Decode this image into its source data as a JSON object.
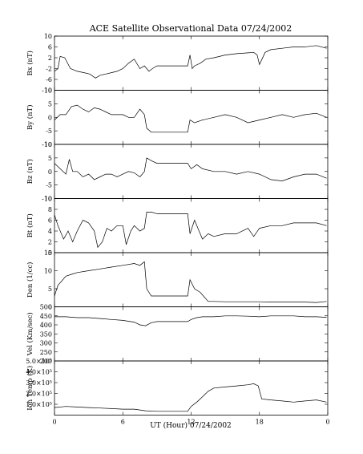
{
  "title": "ACE Satellite Observational Data   07/24/2002",
  "xlabel": "UT (Hour)   07/24/2002",
  "chart_data": [
    {
      "type": "line",
      "ylabel": "Bx (nT)",
      "ylim": [
        -10,
        10
      ],
      "yticks": [
        "-10",
        "-6",
        "-2",
        "2",
        "6",
        "10"
      ],
      "ytick_values": [
        -10,
        -6,
        -2,
        2,
        6,
        10
      ],
      "x": [
        0,
        0.3,
        0.5,
        0.9,
        1.4,
        2.0,
        2.6,
        3.1,
        3.6,
        4.0,
        4.5,
        5.0,
        5.5,
        6.0,
        6.5,
        7.0,
        7.5,
        7.9,
        8.3,
        8.6,
        9.0,
        10.0,
        11.0,
        11.7,
        11.9,
        12.1,
        12.3,
        12.8,
        13.3,
        14.0,
        15.0,
        16.0,
        17.0,
        17.5,
        17.8,
        18.0,
        18.5,
        19.0,
        20.0,
        21.0,
        22.0,
        23.0,
        23.9
      ],
      "values": [
        -3,
        -2,
        2.5,
        2,
        -2,
        -3,
        -3.5,
        -4,
        -5.5,
        -4.5,
        -4,
        -3.5,
        -3,
        -2,
        0,
        1.5,
        -2,
        -1,
        -3,
        -2,
        -1,
        -1,
        -1,
        -1,
        3,
        -2,
        -1,
        0,
        1.5,
        2,
        3,
        3.5,
        3.8,
        4,
        3,
        -0.5,
        4,
        5,
        5.5,
        6,
        6,
        6.5,
        5.5
      ],
      "xlim": [
        0,
        24
      ],
      "xticks": [
        "0",
        "6",
        "12",
        "18",
        "0"
      ],
      "xtick_values": [
        0,
        6,
        12,
        18,
        24
      ]
    },
    {
      "type": "line",
      "ylabel": "By (nT)",
      "ylim": [
        -10,
        10
      ],
      "yticks": [
        "-10",
        "-5",
        "0",
        "5",
        "10"
      ],
      "ytick_values": [
        -10,
        -5,
        0,
        5,
        10
      ],
      "x": [
        0,
        0.5,
        1.0,
        1.5,
        2.0,
        2.5,
        3.0,
        3.5,
        4.0,
        4.5,
        5.0,
        5.5,
        6.0,
        6.5,
        7.0,
        7.5,
        7.9,
        8.1,
        8.5,
        9.0,
        10.0,
        11.0,
        11.7,
        11.9,
        12.3,
        13.0,
        14.0,
        15.0,
        16.0,
        17.0,
        18.0,
        19.0,
        20.0,
        21.0,
        22.0,
        23.0,
        23.9
      ],
      "values": [
        -1,
        1,
        1,
        4,
        4.5,
        3,
        2,
        3.5,
        3,
        2,
        1,
        1,
        1,
        0,
        0,
        3,
        1,
        -4,
        -5.5,
        -5.5,
        -5.5,
        -5.5,
        -5.5,
        -1,
        -2,
        -1,
        0,
        1,
        0,
        -2,
        -1,
        0,
        1,
        0,
        1,
        1.5,
        0
      ],
      "xlim": [
        0,
        24
      ],
      "xticks": [
        "0",
        "6",
        "12",
        "18",
        "0"
      ],
      "xtick_values": [
        0,
        6,
        12,
        18,
        24
      ]
    },
    {
      "type": "line",
      "ylabel": "Bz (nT)",
      "ylim": [
        -10,
        10
      ],
      "yticks": [
        "-10",
        "-5",
        "0",
        "5",
        "10"
      ],
      "ytick_values": [
        -10,
        -5,
        0,
        5,
        10
      ],
      "x": [
        0,
        0.5,
        1.0,
        1.3,
        1.6,
        2.0,
        2.5,
        3.0,
        3.5,
        4.0,
        4.5,
        5.0,
        5.5,
        6.0,
        6.5,
        7.0,
        7.5,
        7.9,
        8.1,
        8.5,
        9.0,
        10.0,
        11.0,
        11.7,
        12.0,
        12.5,
        13.0,
        14.0,
        15.0,
        16.0,
        17.0,
        18.0,
        19.0,
        20.0,
        21.0,
        22.0,
        23.0,
        23.9
      ],
      "values": [
        3,
        1,
        -1,
        4.5,
        0,
        0,
        -2,
        -1,
        -3,
        -2,
        -1,
        -1,
        -2,
        -1,
        0,
        -0.5,
        -2,
        0,
        5,
        4,
        3,
        3,
        3,
        3,
        1,
        2.5,
        1,
        0,
        0,
        -1,
        0,
        -1,
        -3,
        -3.5,
        -2,
        -1,
        -1,
        -2.5
      ],
      "xlim": [
        0,
        24
      ],
      "xticks": [
        "0",
        "6",
        "12",
        "18",
        "0"
      ],
      "xtick_values": [
        0,
        6,
        12,
        18,
        24
      ]
    },
    {
      "type": "line",
      "ylabel": "Bt (nT)",
      "ylim": [
        0,
        10
      ],
      "yticks": [
        "0",
        "2",
        "4",
        "6",
        "8",
        "10"
      ],
      "ytick_values": [
        0,
        2,
        4,
        6,
        8,
        10
      ],
      "x": [
        0,
        0.3,
        0.8,
        1.2,
        1.6,
        2.0,
        2.5,
        3.0,
        3.5,
        3.8,
        4.2,
        4.6,
        5.0,
        5.5,
        6.0,
        6.3,
        6.7,
        7.0,
        7.5,
        7.9,
        8.1,
        8.5,
        9.0,
        10.0,
        11.0,
        11.7,
        11.9,
        12.3,
        12.7,
        13.0,
        13.5,
        14.0,
        15.0,
        16.0,
        17.0,
        17.5,
        18.0,
        19.0,
        20.0,
        21.0,
        22.0,
        23.0,
        23.9
      ],
      "values": [
        7,
        5,
        2.5,
        4,
        2,
        4,
        6,
        5.5,
        4,
        1,
        2,
        4.5,
        4,
        5,
        5,
        1.5,
        4,
        5,
        4,
        4.5,
        7.5,
        7.5,
        7.2,
        7.2,
        7.2,
        7.2,
        3.5,
        6,
        4,
        2.5,
        3.5,
        3,
        3.5,
        3.5,
        4.5,
        3,
        4.5,
        5,
        5,
        5.5,
        5.5,
        5.5,
        5
      ],
      "xlim": [
        0,
        24
      ],
      "xticks": [
        "0",
        "6",
        "12",
        "18",
        "0"
      ],
      "xtick_values": [
        0,
        6,
        12,
        18,
        24
      ]
    },
    {
      "type": "line",
      "ylabel": "Den (1/cc)",
      "ylim": [
        0,
        15
      ],
      "yticks": [
        "0",
        "5",
        "10",
        "15"
      ],
      "ytick_values": [
        0,
        5,
        10,
        15
      ],
      "x": [
        0,
        0.3,
        0.6,
        1.0,
        1.5,
        2.0,
        3.0,
        4.0,
        5.0,
        6.0,
        7.0,
        7.5,
        7.9,
        8.1,
        8.5,
        9.0,
        10.0,
        11.0,
        11.7,
        11.9,
        12.3,
        12.8,
        13.5,
        14.0,
        15.0,
        16.0,
        17.0,
        18.0,
        19.0,
        20.0,
        21.0,
        22.0,
        23.0,
        23.9
      ],
      "values": [
        3,
        6,
        7,
        8.5,
        9,
        9.5,
        10,
        10.5,
        11,
        11.5,
        12,
        11.5,
        12.5,
        5,
        3,
        3,
        3,
        3,
        3,
        7.5,
        5,
        4,
        1.5,
        1.5,
        1.4,
        1.4,
        1.4,
        1.4,
        1.3,
        1.3,
        1.3,
        1.3,
        1.2,
        1.5
      ],
      "xlim": [
        0,
        24
      ],
      "xticks": [
        "0",
        "6",
        "12",
        "18",
        "0"
      ],
      "xtick_values": [
        0,
        6,
        12,
        18,
        24
      ]
    },
    {
      "type": "line",
      "ylabel": "Vel (Km/sec)",
      "ylim": [
        200,
        500
      ],
      "yticks": [
        "200",
        "250",
        "300",
        "350",
        "400",
        "450",
        "500"
      ],
      "ytick_values": [
        200,
        250,
        300,
        350,
        400,
        450,
        500
      ],
      "x": [
        0,
        1,
        2,
        3,
        4,
        5,
        6,
        7,
        7.5,
        8.0,
        8.5,
        9.0,
        10.0,
        11.0,
        11.7,
        12.0,
        12.5,
        13.0,
        14.0,
        15.0,
        16.0,
        17.0,
        18.0,
        19.0,
        20.0,
        21.0,
        22.0,
        23.0,
        23.9
      ],
      "values": [
        445,
        445,
        440,
        440,
        435,
        430,
        425,
        415,
        400,
        395,
        412,
        418,
        418,
        418,
        418,
        430,
        440,
        445,
        445,
        450,
        450,
        448,
        445,
        450,
        450,
        450,
        445,
        445,
        442
      ],
      "xlim": [
        0,
        24
      ],
      "xticks": [
        "0",
        "6",
        "12",
        "18",
        "0"
      ],
      "xtick_values": [
        0,
        6,
        12,
        18,
        24
      ]
    },
    {
      "type": "line",
      "ylabel": "Ion Temp (K)",
      "ylim": [
        0,
        500000
      ],
      "yticks": [
        "1.0×10⁵",
        "2.0×10⁵",
        "3.0×10⁵",
        "4.0×10⁵",
        "5.0×10⁵"
      ],
      "ytick_values": [
        100000,
        200000,
        300000,
        400000,
        500000
      ],
      "x": [
        0,
        1,
        2,
        3,
        4,
        5,
        6,
        7,
        8,
        9,
        10,
        11,
        11.7,
        12.0,
        12.5,
        13.0,
        13.5,
        14.0,
        15.0,
        16.0,
        17.0,
        17.5,
        17.9,
        18.2,
        19.0,
        20.0,
        21.0,
        22.0,
        23.0,
        23.9
      ],
      "values": [
        70000,
        80000,
        75000,
        70000,
        65000,
        60000,
        55000,
        55000,
        40000,
        35000,
        35000,
        35000,
        35000,
        80000,
        120000,
        170000,
        220000,
        250000,
        260000,
        270000,
        280000,
        290000,
        270000,
        150000,
        140000,
        130000,
        120000,
        130000,
        140000,
        120000
      ],
      "xlim": [
        0,
        24
      ],
      "xticks": [
        "0",
        "6",
        "12",
        "18",
        "0"
      ],
      "xtick_values": [
        0,
        6,
        12,
        18,
        24
      ]
    }
  ]
}
